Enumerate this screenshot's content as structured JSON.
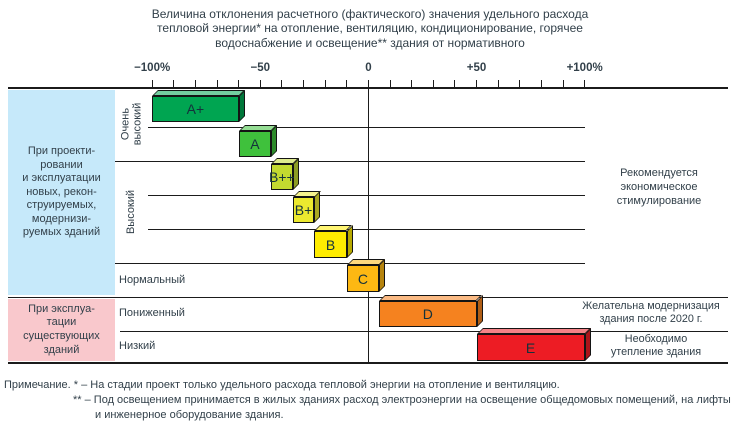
{
  "title": "Величина отклонения расчетного (фактического) значения удельного расхода\nтепловой энергии* на отопление, вентиляцию, кондиционирование, горячее\nводоснабжение и освещение** здания от нормативного",
  "chart_data": {
    "type": "bar",
    "subtype": "horizontal-range-classification",
    "x_axis": {
      "min": -100,
      "max": 100,
      "tick_step": 10,
      "tick_labels": [
        {
          "text": "−100%",
          "value": -100
        },
        {
          "text": "−50",
          "value": -50
        },
        {
          "text": "0",
          "value": 0
        },
        {
          "text": "+50",
          "value": 50
        },
        {
          "text": "+100%",
          "value": 100
        }
      ]
    },
    "classes": [
      {
        "label": "A+",
        "group": "Очень высокий",
        "range_pct": [
          -100,
          -60
        ],
        "color": "#00a551"
      },
      {
        "label": "A",
        "group": "Очень высокий",
        "range_pct": [
          -60,
          -45
        ],
        "color": "#3fc13c"
      },
      {
        "label": "B++",
        "group": "Высокий",
        "range_pct": [
          -45,
          -35
        ],
        "color": "#c3d930"
      },
      {
        "label": "B+",
        "group": "Высокий",
        "range_pct": [
          -35,
          -25
        ],
        "color": "#ece92f"
      },
      {
        "label": "B",
        "group": "Высокий",
        "range_pct": [
          -25,
          -10
        ],
        "color": "#ffec00"
      },
      {
        "label": "C",
        "group": "Нормальный",
        "range_pct": [
          -10,
          5
        ],
        "color": "#fdb813"
      },
      {
        "label": "D",
        "group": "Пониженный",
        "range_pct": [
          5,
          50
        ],
        "color": "#f5821f"
      },
      {
        "label": "E",
        "group": "Низкий",
        "range_pct": [
          50,
          100
        ],
        "color": "#ed1c24"
      }
    ]
  },
  "left_sections": {
    "design": {
      "text": "При проекти-\nровании\nи эксплуатации\nновых, рекон-\nструируемых,\nмодернизи-\nруемых зданий",
      "bg": "#c6e9fa"
    },
    "existing": {
      "text": "При эксплуа-\nтации\nсуществующих\nзданий",
      "bg": "#f9c8cc"
    }
  },
  "row_labels": {
    "very_high": "Очень\nвысокий",
    "high": "Высокий",
    "normal": "Нормальный",
    "lowered": "Пониженный",
    "low": "Низкий"
  },
  "annotations": {
    "stimulus": "Рекомендуется\nэкономическое\nстимулирование",
    "modernization": "Желательна модернизация\nздания после 2020 г.",
    "insulation": "Необходимо\nутепление здания"
  },
  "footnotes": {
    "line1": "Примечание.  * – На стадии проект только удельного расхода тепловой энергии на отопление и вентиляцию.",
    "line2": "** – Под освещением принимается в жилых зданиях расход электроэнергии на освещение общедомовых помещений, на лифты",
    "line3": "и инженерное оборудование здания."
  }
}
